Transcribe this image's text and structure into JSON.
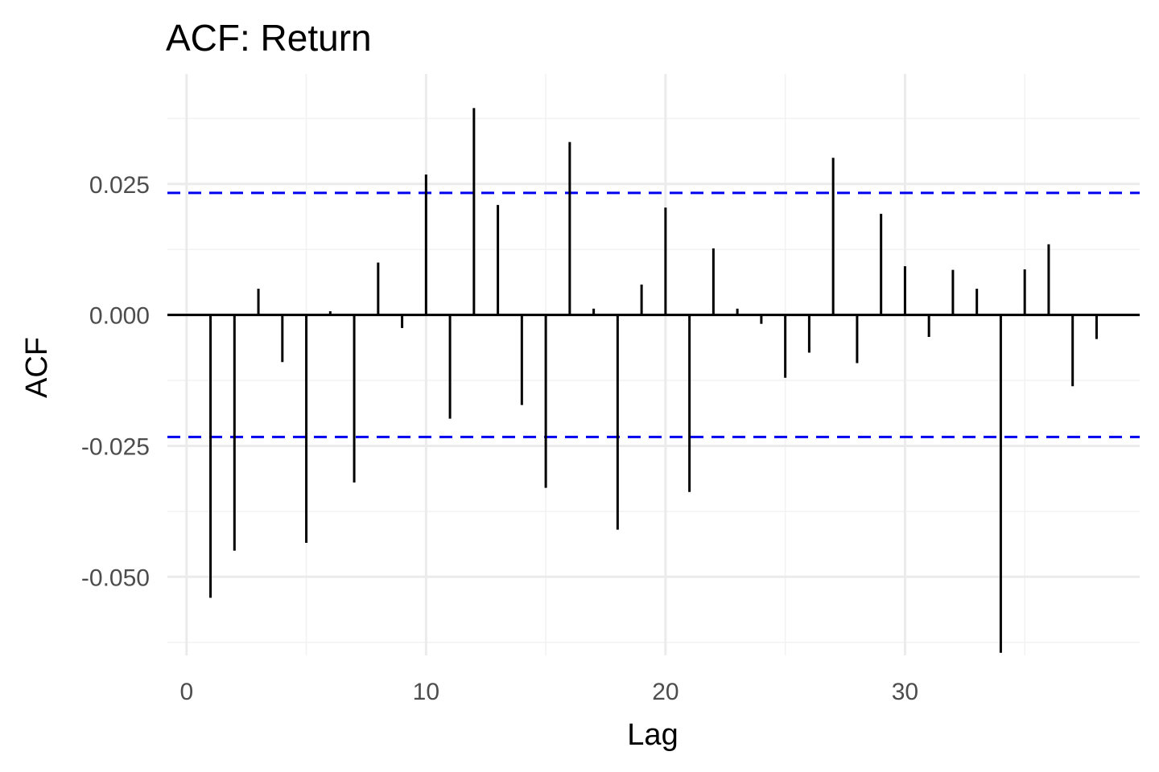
{
  "chart_data": {
    "type": "bar",
    "title": "ACF: Return",
    "xlabel": "Lag",
    "ylabel": "ACF",
    "xlim": [
      -0.8,
      39.8
    ],
    "ylim": [
      -0.065,
      0.046
    ],
    "x_ticks": [
      0,
      10,
      20,
      30
    ],
    "x_tick_labels": [
      "0",
      "10",
      "20",
      "30"
    ],
    "y_ticks": [
      0.025,
      0.0,
      -0.025,
      -0.05
    ],
    "y_tick_labels": [
      "0.025",
      "0.000",
      "-0.025",
      "-0.050"
    ],
    "grid": true,
    "confidence_bounds": [
      0.0233,
      -0.0233
    ],
    "confidence_color": "#0000ee",
    "bar_color": "#000000",
    "x": [
      1,
      2,
      3,
      4,
      5,
      6,
      7,
      8,
      9,
      10,
      11,
      12,
      13,
      14,
      15,
      16,
      17,
      18,
      19,
      20,
      21,
      22,
      23,
      24,
      25,
      26,
      27,
      28,
      29,
      30,
      31,
      32,
      33,
      34,
      35,
      36,
      37,
      38
    ],
    "values": [
      -0.054,
      -0.045,
      0.005,
      -0.009,
      -0.0435,
      0.0007,
      -0.032,
      0.01,
      -0.0025,
      0.0268,
      -0.0198,
      0.0395,
      0.021,
      -0.0172,
      -0.033,
      0.033,
      0.0012,
      -0.041,
      0.0058,
      0.0205,
      -0.0338,
      0.0127,
      0.0012,
      -0.0017,
      -0.012,
      -0.0072,
      0.03,
      -0.0092,
      0.0193,
      0.0093,
      -0.0042,
      0.0086,
      0.005,
      -0.0645,
      0.0087,
      0.0135,
      -0.0136,
      -0.0046
    ]
  }
}
